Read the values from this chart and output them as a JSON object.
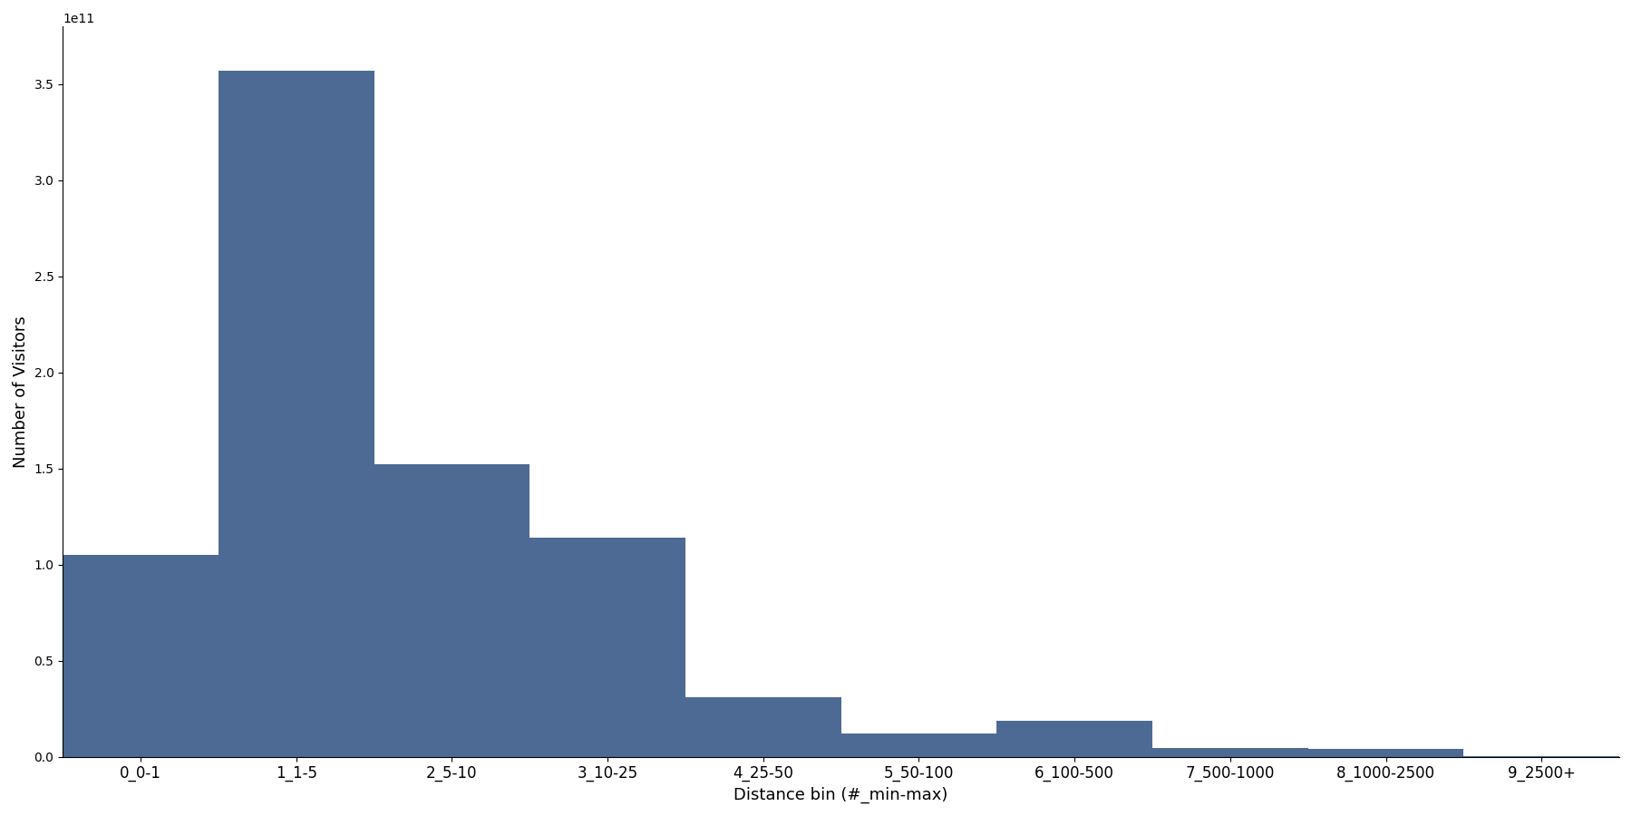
{
  "categories": [
    "0_0-1",
    "1_1-5",
    "2_5-10",
    "3_10-25",
    "4_25-50",
    "5_50-100",
    "6_100-500",
    "7_500-1000",
    "8_1000-2500",
    "9_2500+"
  ],
  "values": [
    105000000000.0,
    357000000000.0,
    152000000000.0,
    114000000000.0,
    31000000000.0,
    12000000000.0,
    18500000000.0,
    4500000000.0,
    4000000000.0,
    500000000.0
  ],
  "bar_color": "#4d6a94",
  "xlabel": "Distance bin (#_min-max)",
  "ylabel": "Number of Visitors",
  "ylim": [
    0,
    380000000000.0
  ],
  "figsize": [
    18.0,
    9.0
  ],
  "dpi": 100,
  "bar_width": 1.0,
  "label_fontsize": 12,
  "axis_label_fontsize": 13
}
